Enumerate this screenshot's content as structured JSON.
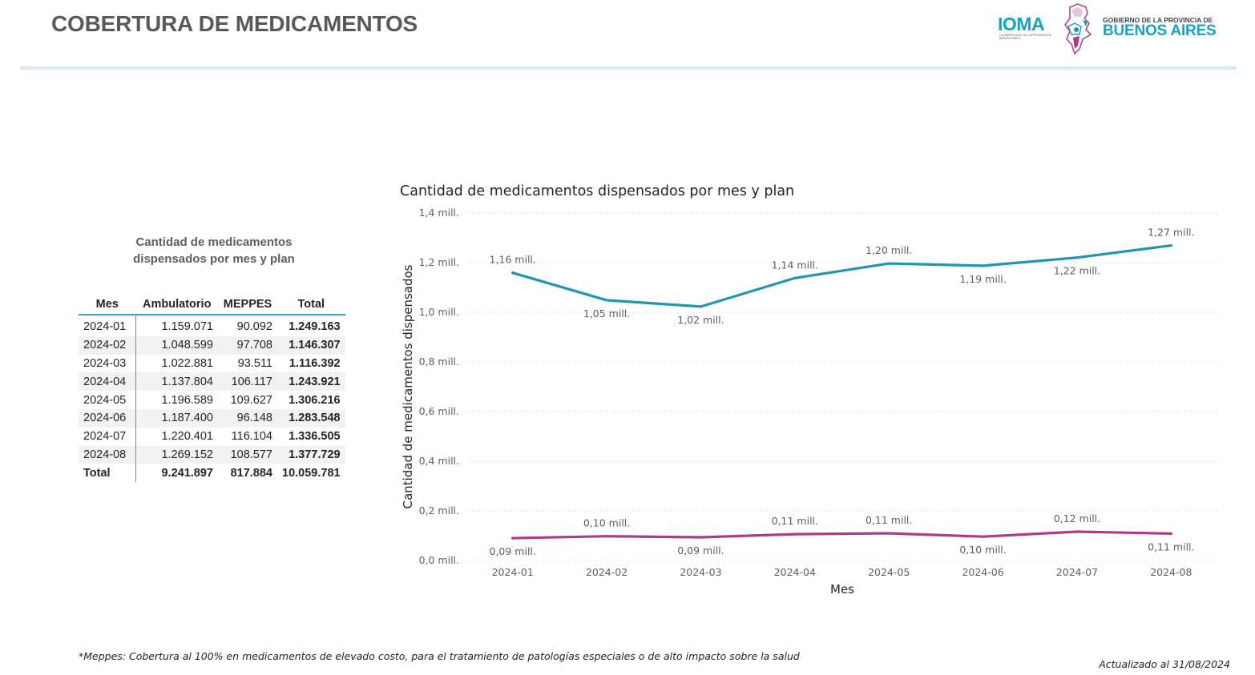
{
  "header": {
    "title": "COBERTURA DE MEDICAMENTOS",
    "logo_ioma": "IOMA",
    "logo_ioma_sub": "LA OBRA SOCIAL DE LA PROVINCIA DE BUENOS AIRES",
    "logo_gov_line1": "GOBIERNO DE LA PROVINCIA DE",
    "logo_gov_line2": "BUENOS AIRES",
    "colors": {
      "ioma": "#13a5bb",
      "province": "#14a3c2",
      "seal_accent": "#b23a84"
    }
  },
  "table": {
    "title": "Cantidad de medicamentos dispensados por mes y plan",
    "columns": [
      "Mes",
      "Ambulatorio",
      "MEPPES",
      "Total"
    ],
    "rows": [
      [
        "2024-01",
        "1.159.071",
        "90.092",
        "1.249.163"
      ],
      [
        "2024-02",
        "1.048.599",
        "97.708",
        "1.146.307"
      ],
      [
        "2024-03",
        "1.022.881",
        "93.511",
        "1.116.392"
      ],
      [
        "2024-04",
        "1.137.804",
        "106.117",
        "1.243.921"
      ],
      [
        "2024-05",
        "1.196.589",
        "109.627",
        "1.306.216"
      ],
      [
        "2024-06",
        "1.187.400",
        "96.148",
        "1.283.548"
      ],
      [
        "2024-07",
        "1.220.401",
        "116.104",
        "1.336.505"
      ],
      [
        "2024-08",
        "1.269.152",
        "108.577",
        "1.377.729"
      ]
    ],
    "total": [
      "Total",
      "9.241.897",
      "817.884",
      "10.059.781"
    ]
  },
  "chart_data": {
    "type": "line",
    "title": "Cantidad de medicamentos dispensados por mes y plan",
    "xlabel": "Mes",
    "ylabel": "Cantidad de medicamentos dispensados",
    "categories": [
      "2024-01",
      "2024-02",
      "2024-03",
      "2024-04",
      "2024-05",
      "2024-06",
      "2024-07",
      "2024-08"
    ],
    "ylim": [
      0,
      1.4
    ],
    "y_unit": "mill.",
    "y_ticks": [
      "0,0 mill.",
      "0,2 mill.",
      "0,4 mill.",
      "0,6 mill.",
      "0,8 mill.",
      "1,0 mill.",
      "1,2 mill.",
      "1,4 mill."
    ],
    "grid": true,
    "series": [
      {
        "color": "#2196b3",
        "values": [
          1.159071,
          1.048599,
          1.022881,
          1.137804,
          1.196589,
          1.1874,
          1.220401,
          1.269152
        ],
        "labels": [
          "1,16 mill.",
          "1,05 mill.",
          "1,02 mill.",
          "1,14 mill.",
          "1,20 mill.",
          "1,19 mill.",
          "1,22 mill.",
          "1,27 mill."
        ]
      },
      {
        "color": "#b23a84",
        "values": [
          0.090092,
          0.097708,
          0.093511,
          0.106117,
          0.109627,
          0.096148,
          0.116104,
          0.108577
        ],
        "labels": [
          "0,09 mill.",
          "0,10 mill.",
          "0,09 mill.",
          "0,11 mill.",
          "0,11 mill.",
          "0,10 mill.",
          "0,12 mill.",
          "0,11 mill."
        ]
      }
    ]
  },
  "footer": {
    "note": "*Meppes: Cobertura al 100% en medicamentos de elevado costo, para el tratamiento de patologías especiales o de alto impacto sobre la salud",
    "updated": "Actualizado al 31/08/2024"
  }
}
